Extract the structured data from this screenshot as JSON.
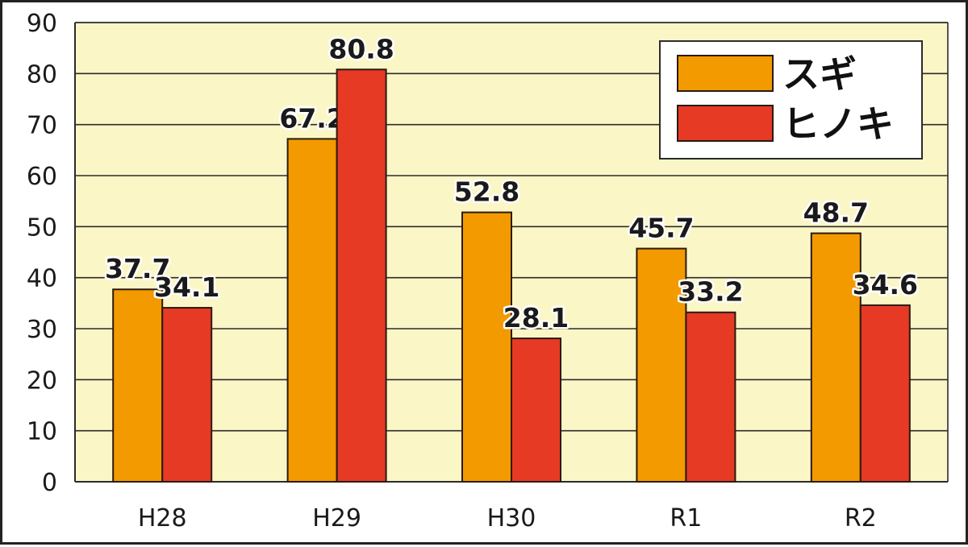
{
  "chart_data": {
    "type": "bar",
    "title": "",
    "xlabel": "",
    "ylabel": "",
    "categories": [
      "H28",
      "H29",
      "H30",
      "R1",
      "R2"
    ],
    "series": [
      {
        "name": "スギ",
        "values": [
          37.7,
          67.2,
          52.8,
          45.7,
          48.7
        ],
        "color": "#F29A00"
      },
      {
        "name": "ヒノキ",
        "values": [
          34.1,
          80.8,
          28.1,
          33.2,
          34.6
        ],
        "color": "#E63A24"
      }
    ],
    "ylim": [
      0,
      90
    ],
    "yticks": [
      "0",
      "10",
      "20",
      "30",
      "40",
      "50",
      "60",
      "70",
      "80",
      "90"
    ],
    "value_labels": [
      [
        "37.7",
        "67.2",
        "52.8",
        "45.7",
        "48.7"
      ],
      [
        "34.1",
        "80.8",
        "28.1",
        "33.2",
        "34.6"
      ]
    ],
    "grid": true,
    "legend_position": "top-right",
    "plot_background": "#FBF6C6",
    "bar_outline": "#2a1a10"
  }
}
